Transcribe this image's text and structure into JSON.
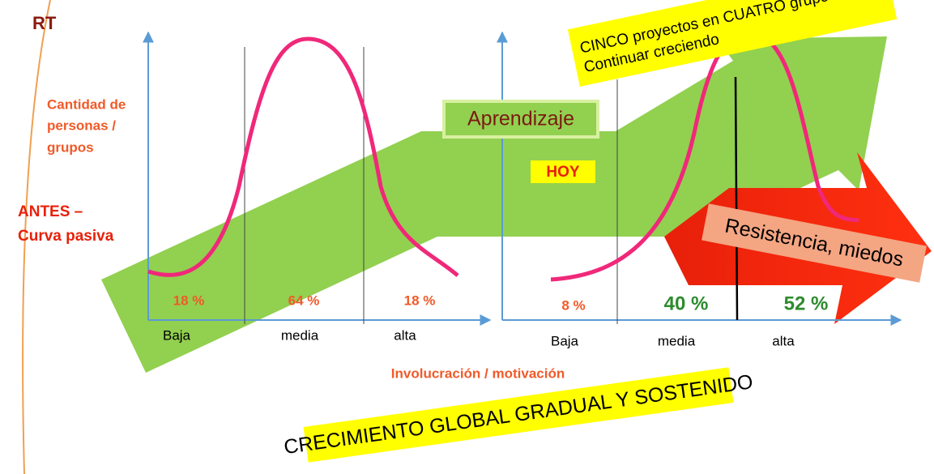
{
  "logo": "RT",
  "y_axis_label": [
    "Cantidad de",
    "personas /",
    "grupos"
  ],
  "before_label": [
    "ANTES –",
    "Curva pasiva"
  ],
  "x_axis_label": "Involucración / motivación",
  "before": {
    "levels": [
      "Baja",
      "media",
      "alta"
    ],
    "percentages": [
      "18 %",
      "64 %",
      "18 %"
    ]
  },
  "after": {
    "levels": [
      "Baja",
      "media",
      "alta"
    ],
    "percentages": [
      "8 %",
      "40 %",
      "52 %"
    ]
  },
  "learning_label": "Aprendizaje",
  "today_label": "HOY",
  "resistance_label": "Resistencia, miedos",
  "projects_note": [
    "CINCO proyectos en CUATRO grupos",
    "Continuar creciendo"
  ],
  "footer": "CRECIMIENTO GLOBAL GRADUAL Y SOSTENIDO"
}
